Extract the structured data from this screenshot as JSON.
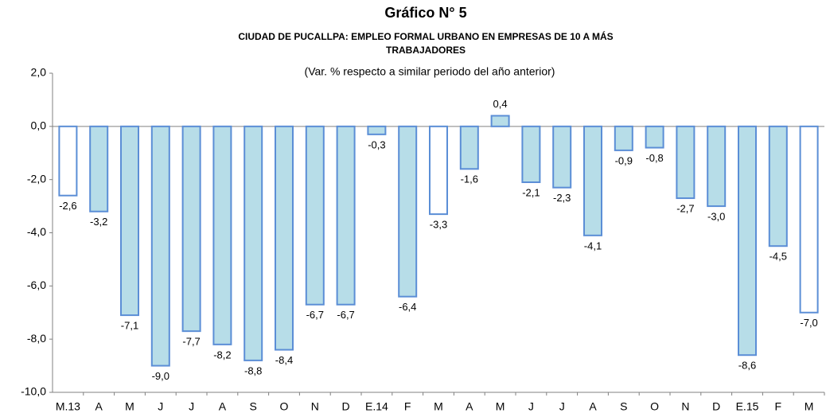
{
  "chart_data": {
    "type": "bar",
    "title": "Gráfico N° 5",
    "subtitle": [
      "CIUDAD DE PUCALLPA: EMPLEO FORMAL URBANO EN EMPRESAS DE 10 A MÁS",
      "TRABAJADORES"
    ],
    "note": "(Var. % respecto a similar periodo del año anterior)",
    "categories": [
      "M.13",
      "A",
      "M",
      "J",
      "J",
      "A",
      "S",
      "O",
      "N",
      "D",
      "E.14",
      "F",
      "M",
      "A",
      "M",
      "J",
      "J",
      "A",
      "S",
      "O",
      "N",
      "D",
      "E.15",
      "F",
      "M"
    ],
    "values": [
      -2.6,
      -3.2,
      -7.1,
      -9.0,
      -7.7,
      -8.2,
      -8.8,
      -8.4,
      -6.7,
      -6.7,
      -0.3,
      -6.4,
      -3.3,
      -1.6,
      0.4,
      -2.1,
      -2.3,
      -4.1,
      -0.9,
      -0.8,
      -2.7,
      -3.0,
      -8.6,
      -4.5,
      -7.0
    ],
    "value_labels": [
      "-2,6",
      "-3,2",
      "-7,1",
      "-9,0",
      "-7,7",
      "-8,2",
      "-8,8",
      "-8,4",
      "-6,7",
      "-6,7",
      "-0,3",
      "-6,4",
      "-3,3",
      "-1,6",
      "0,4",
      "-2,1",
      "-2,3",
      "-4,1",
      "-0,9",
      "-0,8",
      "-2,7",
      "-3,0",
      "-8,6",
      "-4,5",
      "-7,0"
    ],
    "colors": [
      "#ffffff",
      "#b7dde8",
      "#b7dde8",
      "#b7dde8",
      "#b7dde8",
      "#b7dde8",
      "#b7dde8",
      "#b7dde8",
      "#b7dde8",
      "#b7dde8",
      "#b7dde8",
      "#b7dde8",
      "#ffffff",
      "#b7dde8",
      "#b7dde8",
      "#b7dde8",
      "#b7dde8",
      "#b7dde8",
      "#b7dde8",
      "#b7dde8",
      "#b7dde8",
      "#b7dde8",
      "#b7dde8",
      "#b7dde8",
      "#ffffff"
    ],
    "edge_color": "#5b8ed6",
    "ylim": [
      -10,
      2
    ],
    "yticks": [
      {
        "value": 2,
        "label": "2,0"
      },
      {
        "value": 0,
        "label": "0,0"
      },
      {
        "value": -2,
        "label": "-2,0"
      },
      {
        "value": -4,
        "label": "-4,0"
      },
      {
        "value": -6,
        "label": "-6,0"
      },
      {
        "value": -8,
        "label": "-8,0"
      },
      {
        "value": -10,
        "label": "-10,0"
      }
    ]
  }
}
